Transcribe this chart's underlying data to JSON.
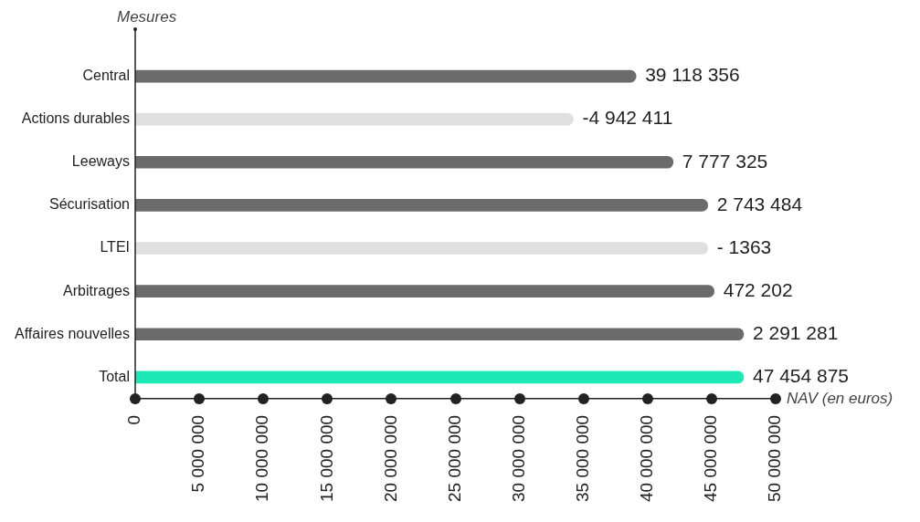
{
  "chart_data": {
    "type": "bar",
    "orientation": "horizontal",
    "xlabel": "NAV (en euros)",
    "ylabel": "Mesures",
    "categories": [
      "Central",
      "Actions durables",
      "Leeways",
      "Sécurisation",
      "LTEI",
      "Arbitrages",
      "Affaires nouvelles",
      "Total"
    ],
    "values": [
      39100000,
      34200000,
      42000000,
      44700000,
      44700000,
      45200000,
      47500000,
      47500000
    ],
    "colors": [
      "#6b6b6b",
      "#e0e0e0",
      "#6b6b6b",
      "#6b6b6b",
      "#e0e0e0",
      "#6b6b6b",
      "#6b6b6b",
      "#1de9b6"
    ],
    "annotations": [
      {
        "text": "39 118 356",
        "x": 39100000,
        "y": "Central"
      },
      {
        "text": "-4 942 411",
        "x": 34200000,
        "y": "Actions durables"
      },
      {
        "text": "7 777 325",
        "x": 42000000,
        "y": "Leeways"
      },
      {
        "text": "2 743 484",
        "x": 44700000,
        "y": "Sécurisation"
      },
      {
        "text": "- 1363",
        "x": 44700000,
        "y": "LTEI"
      },
      {
        "text": "472 202",
        "x": 45200000,
        "y": "Arbitrages"
      },
      {
        "text": "2 291 281",
        "x": 47500000,
        "y": "Affaires nouvelles"
      },
      {
        "text": "47 454 875",
        "x": 47500000,
        "y": "Total"
      }
    ],
    "xlim": [
      0,
      50000000
    ],
    "xticks": [
      0,
      {
        "value": 5000000,
        "label": "5 000 000"
      },
      {
        "value": 10000000,
        "label": "10 000 000"
      },
      {
        "value": 15000000,
        "label": "15 000 000"
      },
      {
        "value": 20000000,
        "label": "20 000 000"
      },
      {
        "value": 25000000,
        "label": "25 000 000"
      },
      {
        "value": 30000000,
        "label": "30 000 000"
      },
      {
        "value": 35000000,
        "label": "35 000 000"
      },
      {
        "value": 40000000,
        "label": "40 000 000"
      },
      {
        "value": 45000000,
        "label": "45 000 000"
      },
      {
        "value": 50000000,
        "label": "50 000 000"
      }
    ],
    "grid": false,
    "legend": false
  }
}
